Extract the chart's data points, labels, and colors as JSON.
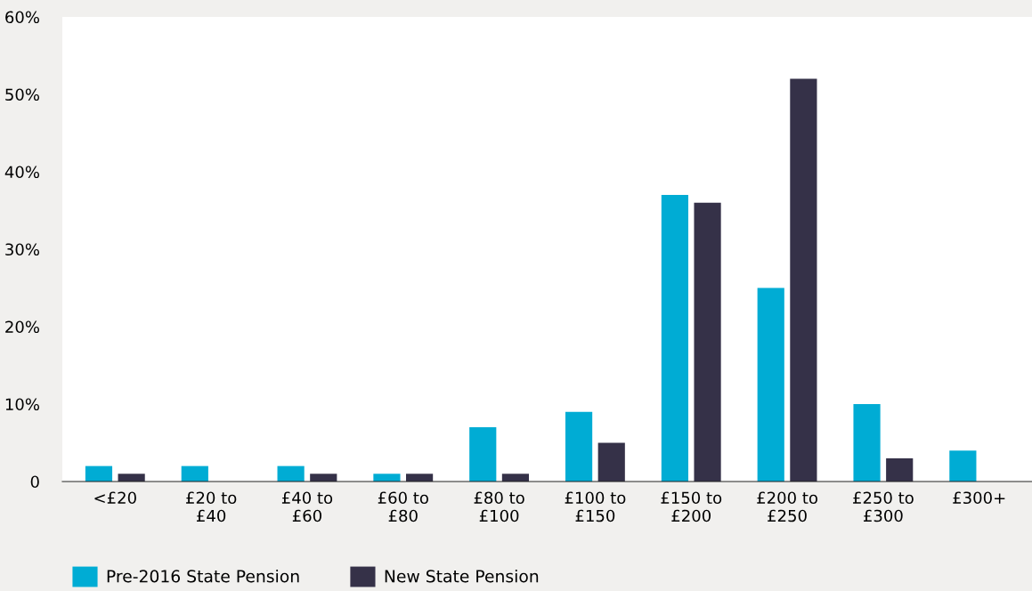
{
  "chart_data": {
    "type": "bar",
    "categories": [
      "<£20",
      "£20 to\n£40",
      "£40 to\n£60",
      "£60 to\n£80",
      "£80 to\n£100",
      "£100 to\n£150",
      "£150 to\n£200",
      "£200 to\n£250",
      "£250 to\n£300",
      "£300+"
    ],
    "series": [
      {
        "name": "Pre-2016 State Pension",
        "color": "#00acd4",
        "values": [
          2,
          2,
          2,
          1,
          7,
          9,
          37,
          25,
          10,
          4
        ]
      },
      {
        "name": "New State Pension",
        "color": "#353148",
        "values": [
          1,
          null,
          1,
          1,
          1,
          5,
          36,
          52,
          3,
          null
        ]
      }
    ],
    "ylim": [
      0,
      60
    ],
    "yticks": [
      0,
      {
        "value": 10,
        "label": "10%"
      },
      {
        "value": 20,
        "label": "20%"
      },
      {
        "value": 30,
        "label": "30%"
      },
      {
        "value": 40,
        "label": "40%"
      },
      {
        "value": 50,
        "label": "50%"
      },
      {
        "value": 60,
        "label": "60%"
      }
    ],
    "grid": false,
    "legend": "bottom left"
  }
}
